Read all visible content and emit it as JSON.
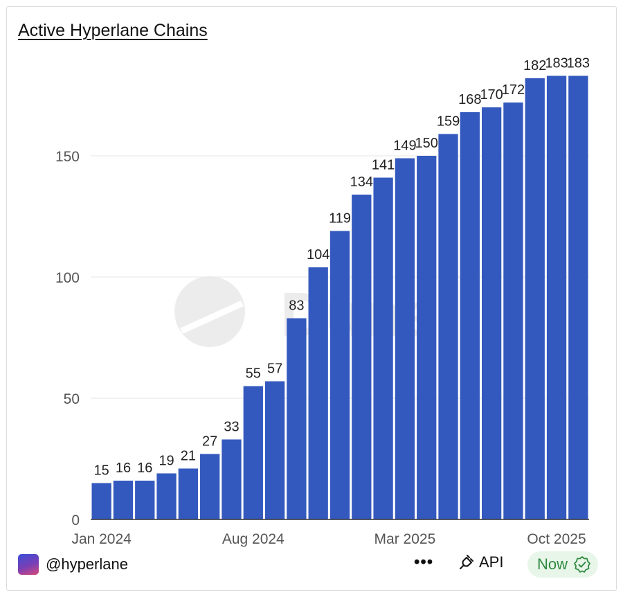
{
  "title": "Active Hyperlane Chains",
  "chart_data": {
    "type": "bar",
    "title": "Active Hyperlane Chains",
    "xlabel": "",
    "ylabel": "",
    "ylim": [
      0,
      200
    ],
    "yticks": [
      0,
      50,
      100,
      150
    ],
    "grid": true,
    "x_tick_labels": [
      {
        "index": 0,
        "label": "Jan 2024"
      },
      {
        "index": 7,
        "label": "Aug 2024"
      },
      {
        "index": 14,
        "label": "Mar 2025"
      },
      {
        "index": 21,
        "label": "Oct 2025"
      }
    ],
    "values": [
      15,
      16,
      16,
      19,
      21,
      27,
      33,
      55,
      57,
      83,
      104,
      119,
      134,
      141,
      149,
      150,
      159,
      168,
      170,
      172,
      182,
      183,
      183
    ],
    "bar_color": "#3459be"
  },
  "watermark": "Dune",
  "footer": {
    "handle": "@hyperlane",
    "more_label": "•••",
    "api_label": "API",
    "now_label": "Now"
  }
}
